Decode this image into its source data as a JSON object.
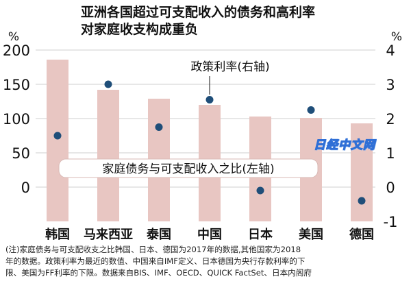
{
  "title_line1": "亚洲各国超过可支配收入的债务和高利率",
  "title_line2": "对家庭收支构成重负",
  "watermark": "日经中文网",
  "note_lines": [
    "(注)家庭债务与可支配收支之比韩国、日本、德国为2017年的数据,其他国家为2018",
    "年的数据。政策利率为最近的数值、中国来自IMF定义、日本德国为央行存款利率的下",
    "限、美国为FF利率的下限。数据来自BIS、IMF、OECD、QUICK FactSet、日本内阁府"
  ],
  "chart_data": {
    "type": "bar",
    "categories": [
      "韩国",
      "马来西亚",
      "泰国",
      "中国",
      "日本",
      "美国",
      "德国"
    ],
    "series": [
      {
        "name": "家庭债务与可支配收入之比(左轴)",
        "type": "bar",
        "axis": "left",
        "color": "#e8c6c2",
        "values": [
          186,
          142,
          129,
          120,
          103,
          101,
          93
        ]
      },
      {
        "name": "政策利率(右轴)",
        "type": "scatter",
        "axis": "right",
        "color": "#1f4e79",
        "values": [
          1.5,
          3.0,
          1.75,
          2.55,
          -0.1,
          2.25,
          -0.4
        ]
      }
    ],
    "y_left": {
      "unit": "%",
      "ticks": [
        0,
        50,
        100,
        150,
        200
      ],
      "range": [
        -50,
        200
      ]
    },
    "y_right": {
      "unit": "%",
      "ticks": [
        -1,
        0,
        1,
        2,
        3,
        4
      ],
      "range": [
        -1,
        4
      ]
    },
    "grid": true
  }
}
